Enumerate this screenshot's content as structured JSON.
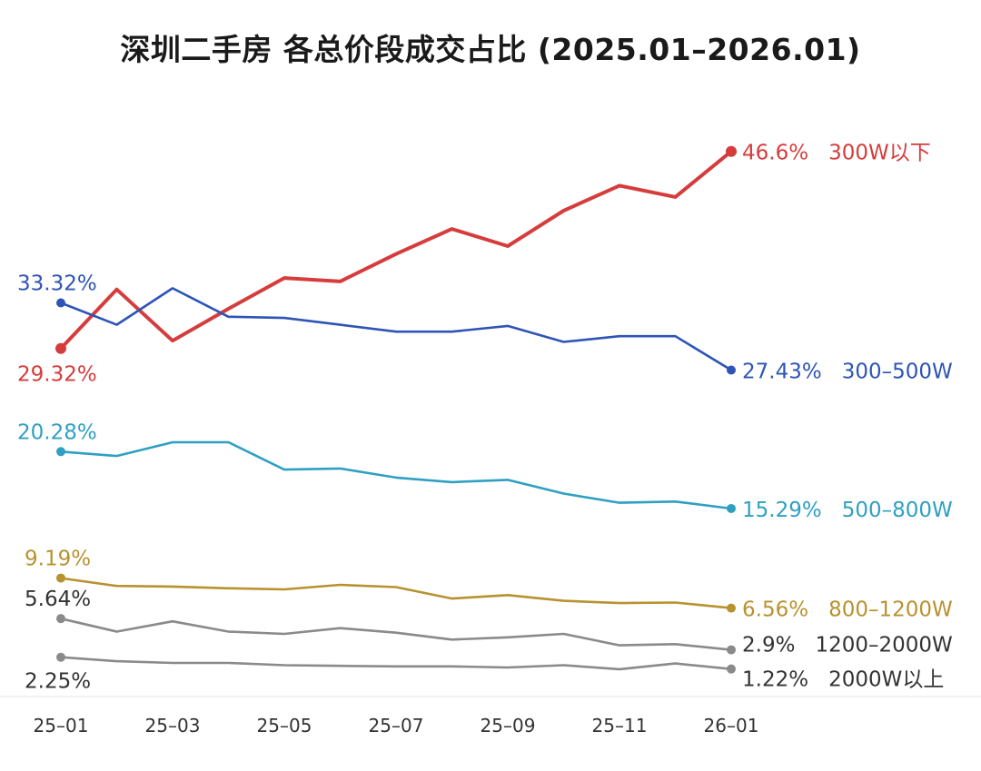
{
  "chart_data": {
    "type": "line",
    "title": "深圳二手房 各总价段成交占比 (2025.01–2026.01)",
    "xlabel": "",
    "ylabel": "",
    "ylim": [
      0,
      50
    ],
    "grid": false,
    "legend": "inline-right",
    "x": [
      "25-01",
      "25-02",
      "25-03",
      "25-04",
      "25-05",
      "25-06",
      "25-07",
      "25-08",
      "25-09",
      "25-10",
      "25-11",
      "25-12",
      "26-01"
    ],
    "xtick_labels": [
      "25–01",
      "25–03",
      "25–05",
      "25–07",
      "25–09",
      "25–11",
      "26–01"
    ],
    "xtick_positions": [
      "25-01",
      "25-03",
      "25-05",
      "25-07",
      "25-09",
      "25-11",
      "26-01"
    ],
    "series": [
      {
        "name": "300W以下",
        "color": "#d63c3c",
        "start_label": "29.32%",
        "end_label": "46.6%",
        "values": [
          29.32,
          34.5,
          30.0,
          32.8,
          35.5,
          35.2,
          37.6,
          39.8,
          38.3,
          41.4,
          43.6,
          42.6,
          46.6
        ]
      },
      {
        "name": "300–500W",
        "color": "#2e54b6",
        "start_label": "33.32%",
        "end_label": "27.43%",
        "values": [
          33.32,
          31.4,
          34.6,
          32.1,
          32.0,
          31.4,
          30.8,
          30.8,
          31.3,
          29.9,
          30.4,
          30.4,
          27.43
        ]
      },
      {
        "name": "500–800W",
        "color": "#2fa0c2",
        "start_label": "20.28%",
        "end_label": "15.29%",
        "values": [
          20.28,
          19.9,
          21.1,
          21.1,
          18.7,
          18.8,
          18.0,
          17.6,
          17.8,
          16.6,
          15.8,
          15.9,
          15.29
        ]
      },
      {
        "name": "800–1200W",
        "color": "#b8922f",
        "start_label": "9.19%",
        "end_label": "6.56%",
        "values": [
          9.19,
          8.5,
          8.45,
          8.3,
          8.2,
          8.6,
          8.4,
          7.4,
          7.7,
          7.2,
          7.0,
          7.05,
          6.56
        ]
      },
      {
        "name": "1200–2000W",
        "color": "#8a8a8a",
        "start_label": "5.64%",
        "end_label": "2.9%",
        "values": [
          5.64,
          4.5,
          5.4,
          4.5,
          4.3,
          4.8,
          4.4,
          3.8,
          4.0,
          4.3,
          3.3,
          3.4,
          2.9
        ]
      },
      {
        "name": "2000W以上",
        "color": "#8a8a8a",
        "start_label": "2.25%",
        "end_label": "1.22%",
        "values": [
          2.25,
          1.9,
          1.75,
          1.75,
          1.55,
          1.5,
          1.45,
          1.45,
          1.35,
          1.55,
          1.2,
          1.7,
          1.22
        ]
      }
    ]
  }
}
